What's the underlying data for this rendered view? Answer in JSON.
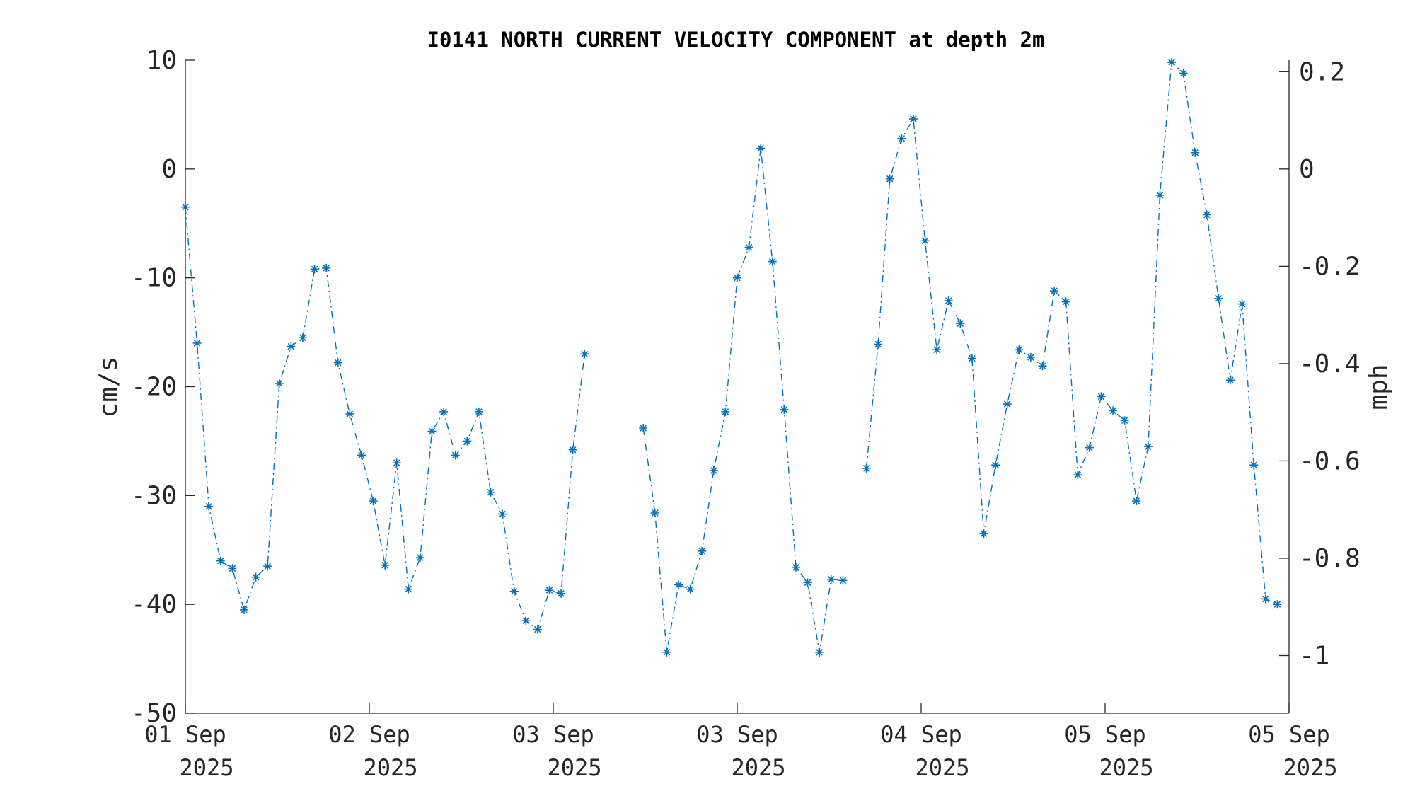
{
  "chart_data": {
    "type": "line",
    "title": "I0141 NORTH CURRENT VELOCITY COMPONENT at depth 2m",
    "ylabel": "cm/s",
    "y2label": "mph",
    "ylim": [
      -50,
      10
    ],
    "y2lim": [
      -1.1185,
      0.2237
    ],
    "yticks": [
      "10",
      "0",
      "-10",
      "-20",
      "-30",
      "-40",
      "-50"
    ],
    "y2ticks": [
      "0.2",
      "0",
      "-0.2",
      "-0.4",
      "-0.6",
      "-0.8",
      "-1"
    ],
    "xticks": [
      {
        "line1": "01 Sep",
        "line2": "2025"
      },
      {
        "line1": "02 Sep",
        "line2": "2025"
      },
      {
        "line1": "03 Sep",
        "line2": "2025"
      },
      {
        "line1": "03 Sep",
        "line2": "2025"
      },
      {
        "line1": "04 Sep",
        "line2": "2025"
      },
      {
        "line1": "05 Sep",
        "line2": "2025"
      },
      {
        "line1": "05 Sep",
        "line2": "2025"
      }
    ],
    "grid": false,
    "marker": "asterisk",
    "line_style": "dash-dot",
    "color": "#0072BD",
    "segments": [
      [
        -3.5,
        -16,
        -31,
        -36,
        -36.7,
        -40.5,
        -37.5,
        -36.5,
        -19.7,
        -16.3,
        -15.5,
        -9.2,
        -9.1,
        -17.8,
        -22.5,
        -26.3,
        -30.5,
        -36.4,
        -27,
        -38.6,
        -35.7,
        -24.1,
        -22.3,
        -26.3,
        -25,
        -22.3,
        -29.7,
        -31.7,
        -38.8,
        -41.5,
        -42.3,
        -38.7,
        -39,
        -25.8,
        -17
      ],
      [
        -23.8,
        -31.6,
        -44.4,
        -38.2,
        -38.6,
        -35.1,
        -27.7,
        -22.3,
        -10,
        -7.2,
        1.9,
        -8.5,
        -22.1,
        -36.6,
        -38,
        -44.4,
        -37.7,
        -37.8
      ],
      [
        -27.5,
        -16.1,
        -0.9,
        2.8,
        4.6,
        -6.6,
        -16.6,
        -12.1,
        -14.2,
        -17.4,
        -33.5,
        -27.2,
        -21.6,
        -16.6,
        -17.3,
        -18.1,
        -11.2,
        -12.2,
        -28.1,
        -25.6,
        -20.9,
        -22.2,
        -23.1,
        -30.5,
        -25.5,
        -2.4,
        9.8,
        8.8,
        1.5,
        -4.2,
        -11.9,
        -19.4,
        -12.4,
        -27.2,
        -39.5,
        -40
      ]
    ]
  }
}
